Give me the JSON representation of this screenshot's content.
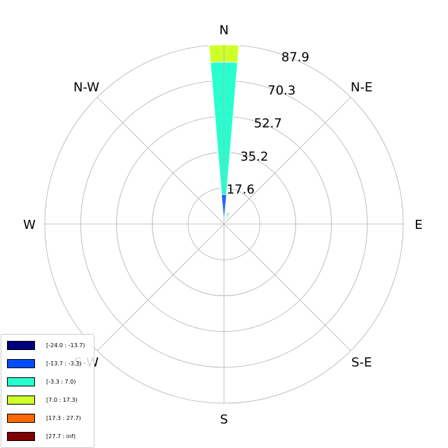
{
  "chart_data": {
    "type": "windrose",
    "directions": [
      "N",
      "N-E",
      "E",
      "S-E",
      "S",
      "S-W",
      "W",
      "N-W"
    ],
    "radial_ticks": [
      "17.6",
      "35.2",
      "52.7",
      "70.3",
      "87.9"
    ],
    "radial_max": 87.9,
    "bins": [
      {
        "label": "[-24.0 : -13.7)",
        "color": "#00007f"
      },
      {
        "label": "[-13.7 : -3.3)",
        "color": "#004cff"
      },
      {
        "label": "[-3.3 : 7.0)",
        "color": "#29ffce"
      },
      {
        "label": "[7.0 : 17.3)",
        "color": "#ceff29"
      },
      {
        "label": "[17.3 : 27.7)",
        "color": "#ff6800"
      },
      {
        "label": "[27.7 : inf)",
        "color": "#7f0000"
      }
    ],
    "sectors": [
      {
        "direction_deg": 0,
        "width_deg": 9.6,
        "stacks": [
          {
            "bin": "[-13.7 : -3.3)",
            "from": 0,
            "to": 14.5
          },
          {
            "bin": "[-3.3 : 7.0)",
            "from": 14.5,
            "to": 79.5
          },
          {
            "bin": "[7.0 : 17.3)",
            "from": 79.5,
            "to": 87.9
          }
        ]
      },
      {
        "direction_deg": 22.5,
        "width_deg": 9.6,
        "stacks": [
          {
            "bin": "[-3.3 : 7.0)",
            "from": 0,
            "to": 6.0
          }
        ]
      }
    ]
  }
}
